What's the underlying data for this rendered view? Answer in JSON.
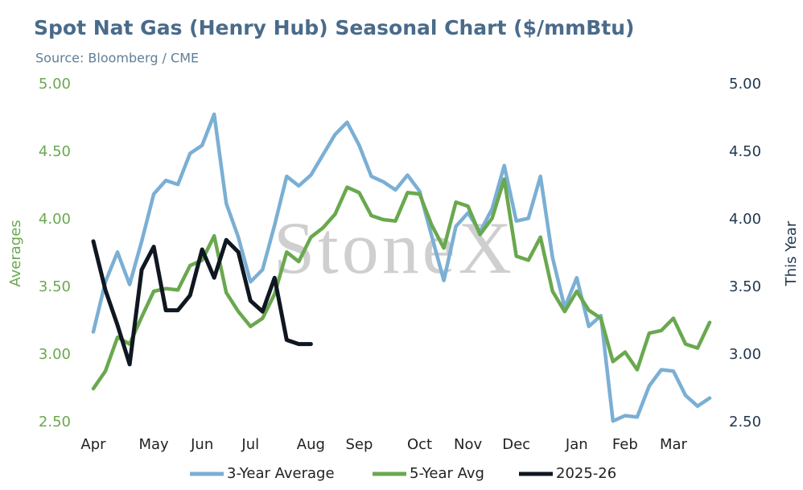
{
  "chart_data": {
    "type": "line",
    "title": "Spot Nat Gas (Henry Hub) Seasonal Chart ($/mmBtu)",
    "subtitle": "Source: Bloomberg / CME",
    "watermark": "StoneX",
    "y_label": "Averages",
    "y2_label": "This Year",
    "categories": [
      "Apr",
      null,
      null,
      null,
      null,
      "May",
      null,
      null,
      null,
      "Jun",
      null,
      null,
      null,
      "Jul",
      null,
      null,
      null,
      null,
      "Aug",
      null,
      null,
      null,
      "Sep",
      null,
      null,
      null,
      null,
      "Oct",
      null,
      null,
      null,
      "Nov",
      null,
      null,
      null,
      "Dec",
      null,
      null,
      null,
      null,
      "Jan",
      null,
      null,
      null,
      "Feb",
      null,
      null,
      null,
      "Mar",
      null,
      null,
      null
    ],
    "ylim": [
      2.5,
      5.0
    ],
    "yticks": [
      {
        "value": 2.5,
        "label": "2.50"
      },
      {
        "value": 3.0,
        "label": "3.00"
      },
      {
        "value": 3.5,
        "label": "3.50"
      },
      {
        "value": 4.0,
        "label": "4.00"
      },
      {
        "value": 4.5,
        "label": "4.50"
      },
      {
        "value": 5.0,
        "label": "5.00"
      }
    ],
    "y2lim": [
      2.5,
      5.0
    ],
    "y2ticks": [
      {
        "value": 2.5,
        "label": "2.50"
      },
      {
        "value": 3.0,
        "label": "3.00"
      },
      {
        "value": 3.5,
        "label": "3.50"
      },
      {
        "value": 4.0,
        "label": "4.00"
      },
      {
        "value": 4.5,
        "label": "4.50"
      },
      {
        "value": 5.0,
        "label": "5.00"
      }
    ],
    "y_color": "#6aa84f",
    "y2_color": "#22384f",
    "legend": "bottom",
    "series": [
      {
        "name": "3-Year Average",
        "color": "#7bafd4",
        "axis": "y",
        "values": [
          3.17,
          3.54,
          3.76,
          3.52,
          3.84,
          4.19,
          4.29,
          4.26,
          4.49,
          4.55,
          4.78,
          4.12,
          3.87,
          3.54,
          3.63,
          3.96,
          4.32,
          4.25,
          4.33,
          4.48,
          4.63,
          4.72,
          4.55,
          4.32,
          4.28,
          4.22,
          4.33,
          4.21,
          3.88,
          3.55,
          3.95,
          4.05,
          3.91,
          4.08,
          4.4,
          3.99,
          4.01,
          4.32,
          3.72,
          3.35,
          3.57,
          3.21,
          3.29,
          2.51,
          2.55,
          2.54,
          2.77,
          2.89,
          2.88,
          2.7,
          2.62,
          2.68
        ]
      },
      {
        "name": "5-Year Avg",
        "color": "#6aa84f",
        "axis": "y",
        "values": [
          2.75,
          2.88,
          3.13,
          3.08,
          3.28,
          3.47,
          3.49,
          3.48,
          3.66,
          3.7,
          3.88,
          3.46,
          3.32,
          3.21,
          3.27,
          3.45,
          3.76,
          3.69,
          3.87,
          3.94,
          4.04,
          4.24,
          4.2,
          4.03,
          4.0,
          3.99,
          4.2,
          4.19,
          3.96,
          3.79,
          4.13,
          4.1,
          3.89,
          4.01,
          4.3,
          3.73,
          3.7,
          3.87,
          3.47,
          3.32,
          3.47,
          3.33,
          3.27,
          2.95,
          3.02,
          2.89,
          3.16,
          3.18,
          3.27,
          3.08,
          3.05,
          3.24
        ]
      },
      {
        "name": "2025-26",
        "color": "#0f1720",
        "axis": "y2",
        "values": [
          3.84,
          3.48,
          3.22,
          2.93,
          3.63,
          3.8,
          3.33,
          3.33,
          3.44,
          3.78,
          3.57,
          3.85,
          3.76,
          3.4,
          3.32,
          3.57,
          3.11,
          3.08,
          3.08,
          null,
          null,
          null,
          null,
          null,
          null,
          null,
          null,
          null,
          null,
          null,
          null,
          null,
          null,
          null,
          null,
          null,
          null,
          null,
          null,
          null,
          null,
          null,
          null,
          null,
          null,
          null,
          null,
          null,
          null,
          null,
          null,
          null
        ]
      }
    ]
  }
}
